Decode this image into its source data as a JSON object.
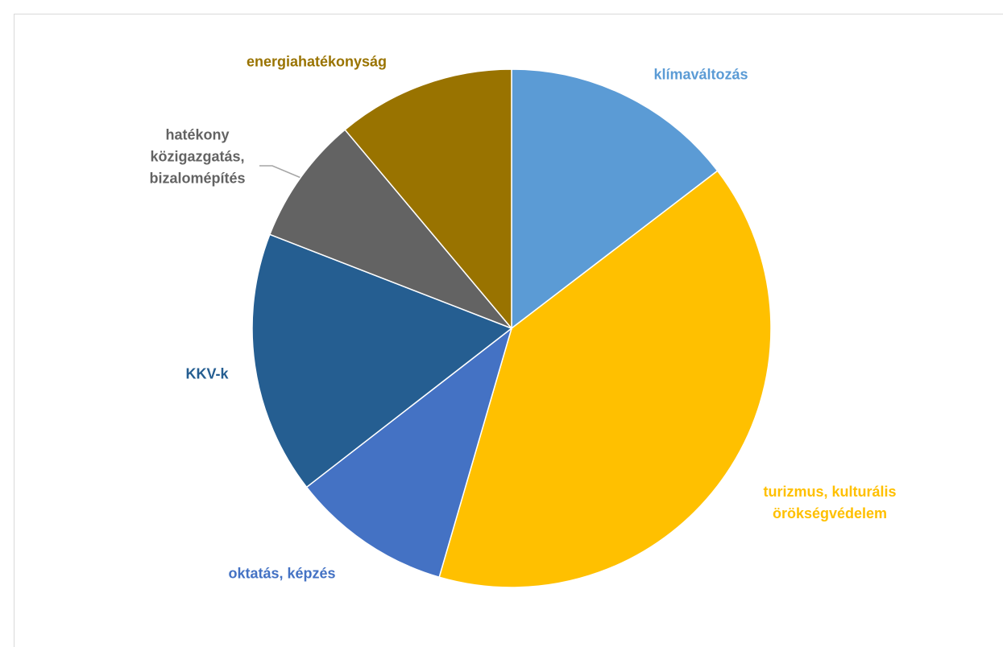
{
  "chart_data": {
    "type": "pie",
    "categories": [
      "klímaváltozás",
      "turizmus, kulturális örökségvédelem",
      "oktatás, képzés",
      "KKV-k",
      "hatékony közigazgatás, bizalomépítés",
      "energiahatékonyság"
    ],
    "values": [
      14.6,
      39.9,
      10,
      16.4,
      8,
      11.1
    ],
    "colors": [
      "#5b9bd5",
      "#ffc000",
      "#4472c4",
      "#255e91",
      "#636363",
      "#997300"
    ]
  }
}
